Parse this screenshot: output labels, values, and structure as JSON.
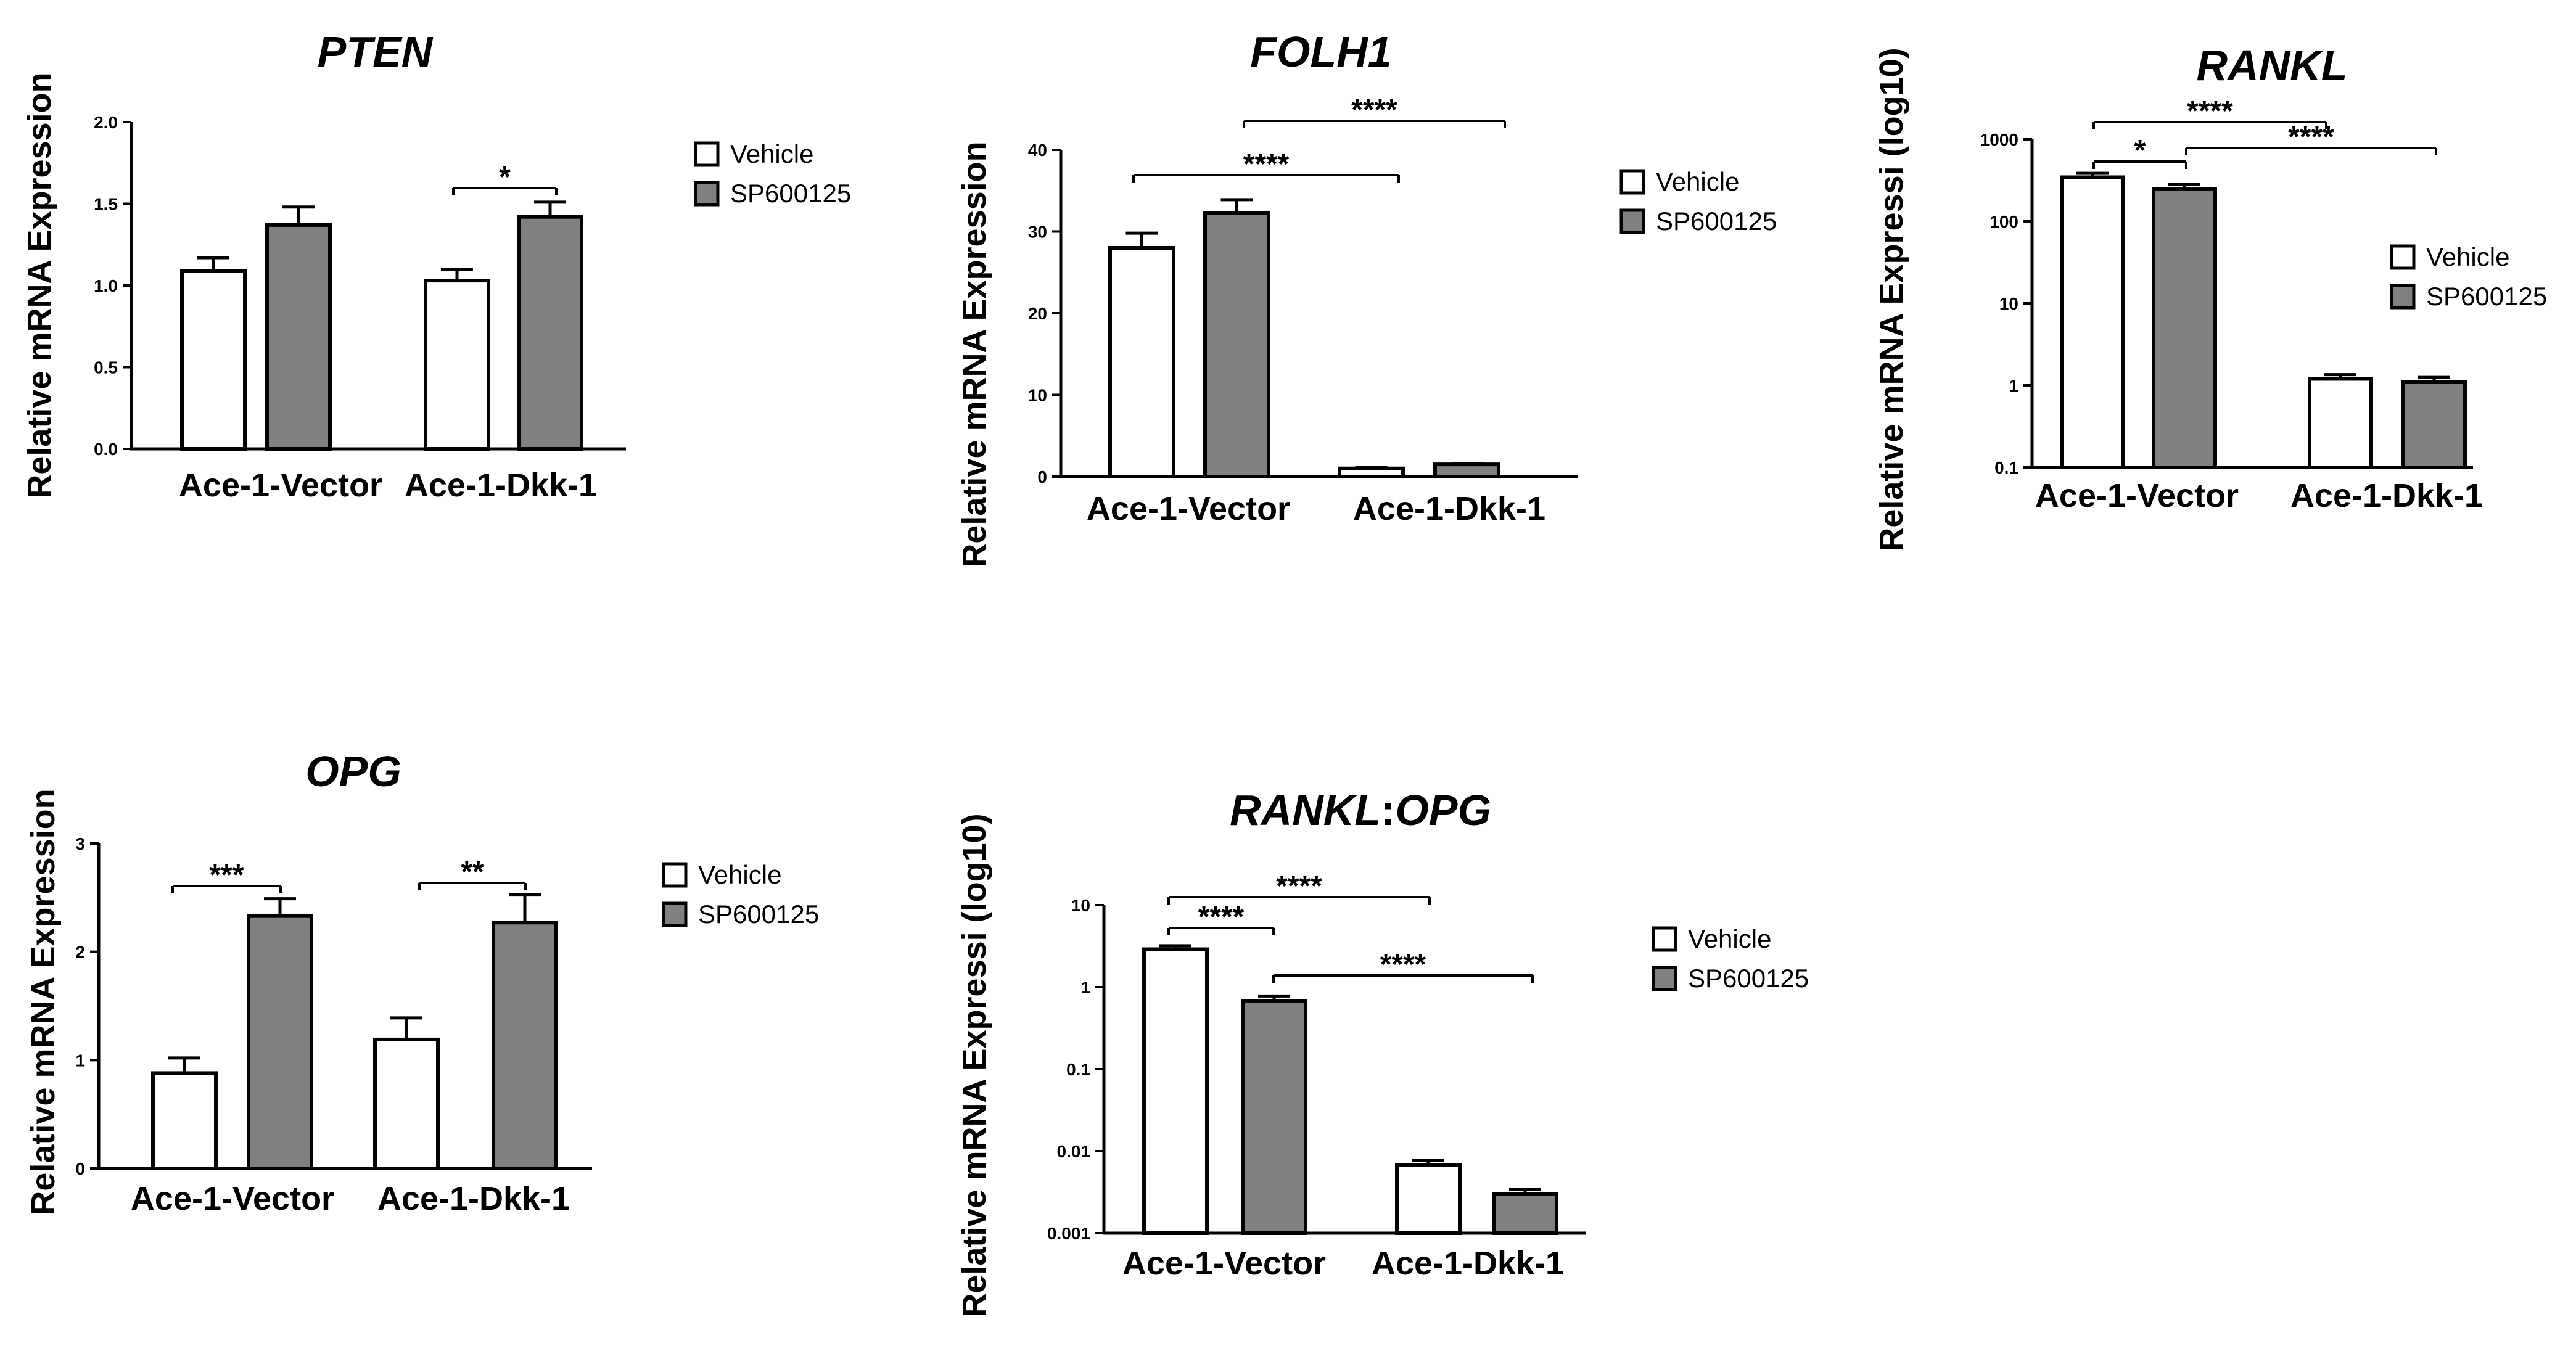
{
  "colors": {
    "Vehicle": "#ffffff",
    "SP600125": "#808080",
    "stroke": "#000000"
  },
  "chart_data": [
    {
      "type": "bar",
      "title": "PTEN",
      "ylabel": "Relative mRNA Expression",
      "categories": [
        "Ace-1-Vector",
        "Ace-1-Dkk-1"
      ],
      "scale": "linear",
      "ylim": [
        0,
        2
      ],
      "yticks": [
        0,
        0.5,
        1,
        1.5,
        2
      ],
      "ytick_labels": [
        "0.0",
        "0.5",
        "1.0",
        "1.5",
        "2.0"
      ],
      "series": [
        {
          "name": "Vehicle",
          "values": [
            1.09,
            1.03
          ],
          "errors": [
            0.08,
            0.07
          ]
        },
        {
          "name": "SP600125",
          "values": [
            1.37,
            1.42
          ],
          "errors": [
            0.11,
            0.09
          ]
        }
      ],
      "legend": {
        "placement": "right",
        "entries": [
          "Vehicle",
          "SP600125"
        ]
      },
      "significance": [
        {
          "from": [
            1,
            0
          ],
          "to": [
            1,
            1
          ],
          "label": "*"
        }
      ]
    },
    {
      "type": "bar",
      "title": "FOLH1",
      "ylabel": "Relative mRNA Expression",
      "categories": [
        "Ace-1-Vector",
        "Ace-1-Dkk-1"
      ],
      "scale": "linear",
      "ylim": [
        0,
        40
      ],
      "yticks": [
        0,
        10,
        20,
        30,
        40
      ],
      "ytick_labels": [
        "0",
        "10",
        "20",
        "30",
        "40"
      ],
      "series": [
        {
          "name": "Vehicle",
          "values": [
            28.0,
            1.0
          ],
          "errors": [
            1.8,
            0.1
          ]
        },
        {
          "name": "SP600125",
          "values": [
            32.3,
            1.5
          ],
          "errors": [
            1.6,
            0.1
          ]
        }
      ],
      "legend": {
        "placement": "right",
        "entries": [
          "Vehicle",
          "SP600125"
        ]
      },
      "significance": [
        {
          "from": [
            0,
            0
          ],
          "to": [
            1,
            0
          ],
          "label": "****"
        },
        {
          "from": [
            0,
            1
          ],
          "to": [
            1,
            1
          ],
          "label": "****"
        }
      ]
    },
    {
      "type": "bar",
      "title": "RANKL",
      "ylabel": "Relative mRNA Expressi (log10)",
      "categories": [
        "Ace-1-Vector",
        "Ace-1-Dkk-1"
      ],
      "scale": "log",
      "ylim": [
        0.1,
        1000
      ],
      "yticks": [
        0.1,
        1,
        10,
        100,
        1000
      ],
      "ytick_labels": [
        "0.1",
        "1",
        "10",
        "100",
        "1000"
      ],
      "series": [
        {
          "name": "Vehicle",
          "values": [
            345,
            1.2
          ],
          "errors": [
            40,
            0.15
          ]
        },
        {
          "name": "SP600125",
          "values": [
            250,
            1.1
          ],
          "errors": [
            30,
            0.15
          ]
        }
      ],
      "legend": {
        "placement": "right",
        "entries": [
          "Vehicle",
          "SP600125"
        ]
      },
      "significance": [
        {
          "from": [
            0,
            0
          ],
          "to": [
            0,
            1
          ],
          "label": "*"
        },
        {
          "from": [
            0,
            0
          ],
          "to": [
            1,
            0
          ],
          "label": "****"
        },
        {
          "from": [
            0,
            1
          ],
          "to": [
            1,
            1
          ],
          "label": "****"
        }
      ]
    },
    {
      "type": "bar",
      "title": "OPG",
      "ylabel": "Relative mRNA Expression",
      "categories": [
        "Ace-1-Vector",
        "Ace-1-Dkk-1"
      ],
      "scale": "linear",
      "ylim": [
        0,
        3
      ],
      "yticks": [
        0,
        1,
        2,
        3
      ],
      "ytick_labels": [
        "0",
        "1",
        "2",
        "3"
      ],
      "series": [
        {
          "name": "Vehicle",
          "values": [
            0.88,
            1.19
          ],
          "errors": [
            0.14,
            0.2
          ]
        },
        {
          "name": "SP600125",
          "values": [
            2.33,
            2.27
          ],
          "errors": [
            0.16,
            0.26
          ]
        }
      ],
      "legend": {
        "placement": "right",
        "entries": [
          "Vehicle",
          "SP600125"
        ]
      },
      "significance": [
        {
          "from": [
            0,
            0
          ],
          "to": [
            0,
            1
          ],
          "label": "***"
        },
        {
          "from": [
            1,
            0
          ],
          "to": [
            1,
            1
          ],
          "label": "**"
        }
      ]
    },
    {
      "type": "bar",
      "title": "RANKL:OPG",
      "title_parts": [
        "RANKL",
        ":",
        "OPG"
      ],
      "ylabel": "Relative mRNA Expressi (log10)",
      "categories": [
        "Ace-1-Vector",
        "Ace-1-Dkk-1"
      ],
      "scale": "log",
      "ylim": [
        0.001,
        10
      ],
      "yticks": [
        0.001,
        0.01,
        0.1,
        1,
        10
      ],
      "ytick_labels": [
        "0.001",
        "0.01",
        "0.1",
        "1",
        "10"
      ],
      "series": [
        {
          "name": "Vehicle",
          "values": [
            2.9,
            0.0068
          ],
          "errors": [
            0.3,
            0.0009
          ]
        },
        {
          "name": "SP600125",
          "values": [
            0.68,
            0.003
          ],
          "errors": [
            0.1,
            0.0004
          ]
        }
      ],
      "legend": {
        "placement": "right",
        "entries": [
          "Vehicle",
          "SP600125"
        ]
      },
      "significance": [
        {
          "from": [
            0,
            0
          ],
          "to": [
            0,
            1
          ],
          "label": "****"
        },
        {
          "from": [
            0,
            0
          ],
          "to": [
            1,
            0
          ],
          "label": "****"
        },
        {
          "from": [
            0,
            1
          ],
          "to": [
            1,
            1
          ],
          "label": "****"
        }
      ]
    }
  ]
}
